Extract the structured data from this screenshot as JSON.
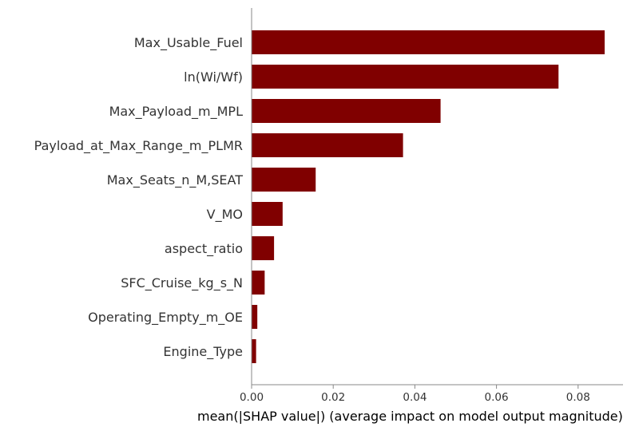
{
  "chart_data": {
    "type": "bar",
    "orientation": "horizontal",
    "categories": [
      "Max_Usable_Fuel",
      "ln(Wi/Wf)",
      "Max_Payload_m_MPL",
      "Payload_at_Max_Range_m_PLMR",
      "Max_Seats_n_M,SEAT",
      "V_MO",
      "aspect_ratio",
      "SFC_Cruise_kg_s_N",
      "Operating_Empty_m_OE",
      "Engine_Type"
    ],
    "values": [
      0.0865,
      0.0752,
      0.0463,
      0.0371,
      0.0157,
      0.0076,
      0.0055,
      0.0032,
      0.0014,
      0.0011
    ],
    "xlabel": "mean(|SHAP value|) (average impact on model output magnitude)",
    "ylabel": "",
    "title": "",
    "xlim": [
      0,
      0.091
    ],
    "xticks": [
      "0.00",
      "0.02",
      "0.04",
      "0.06",
      "0.08"
    ],
    "bar_color": "#800000",
    "axis_color": "#888888",
    "grid": false,
    "legend": "none"
  }
}
